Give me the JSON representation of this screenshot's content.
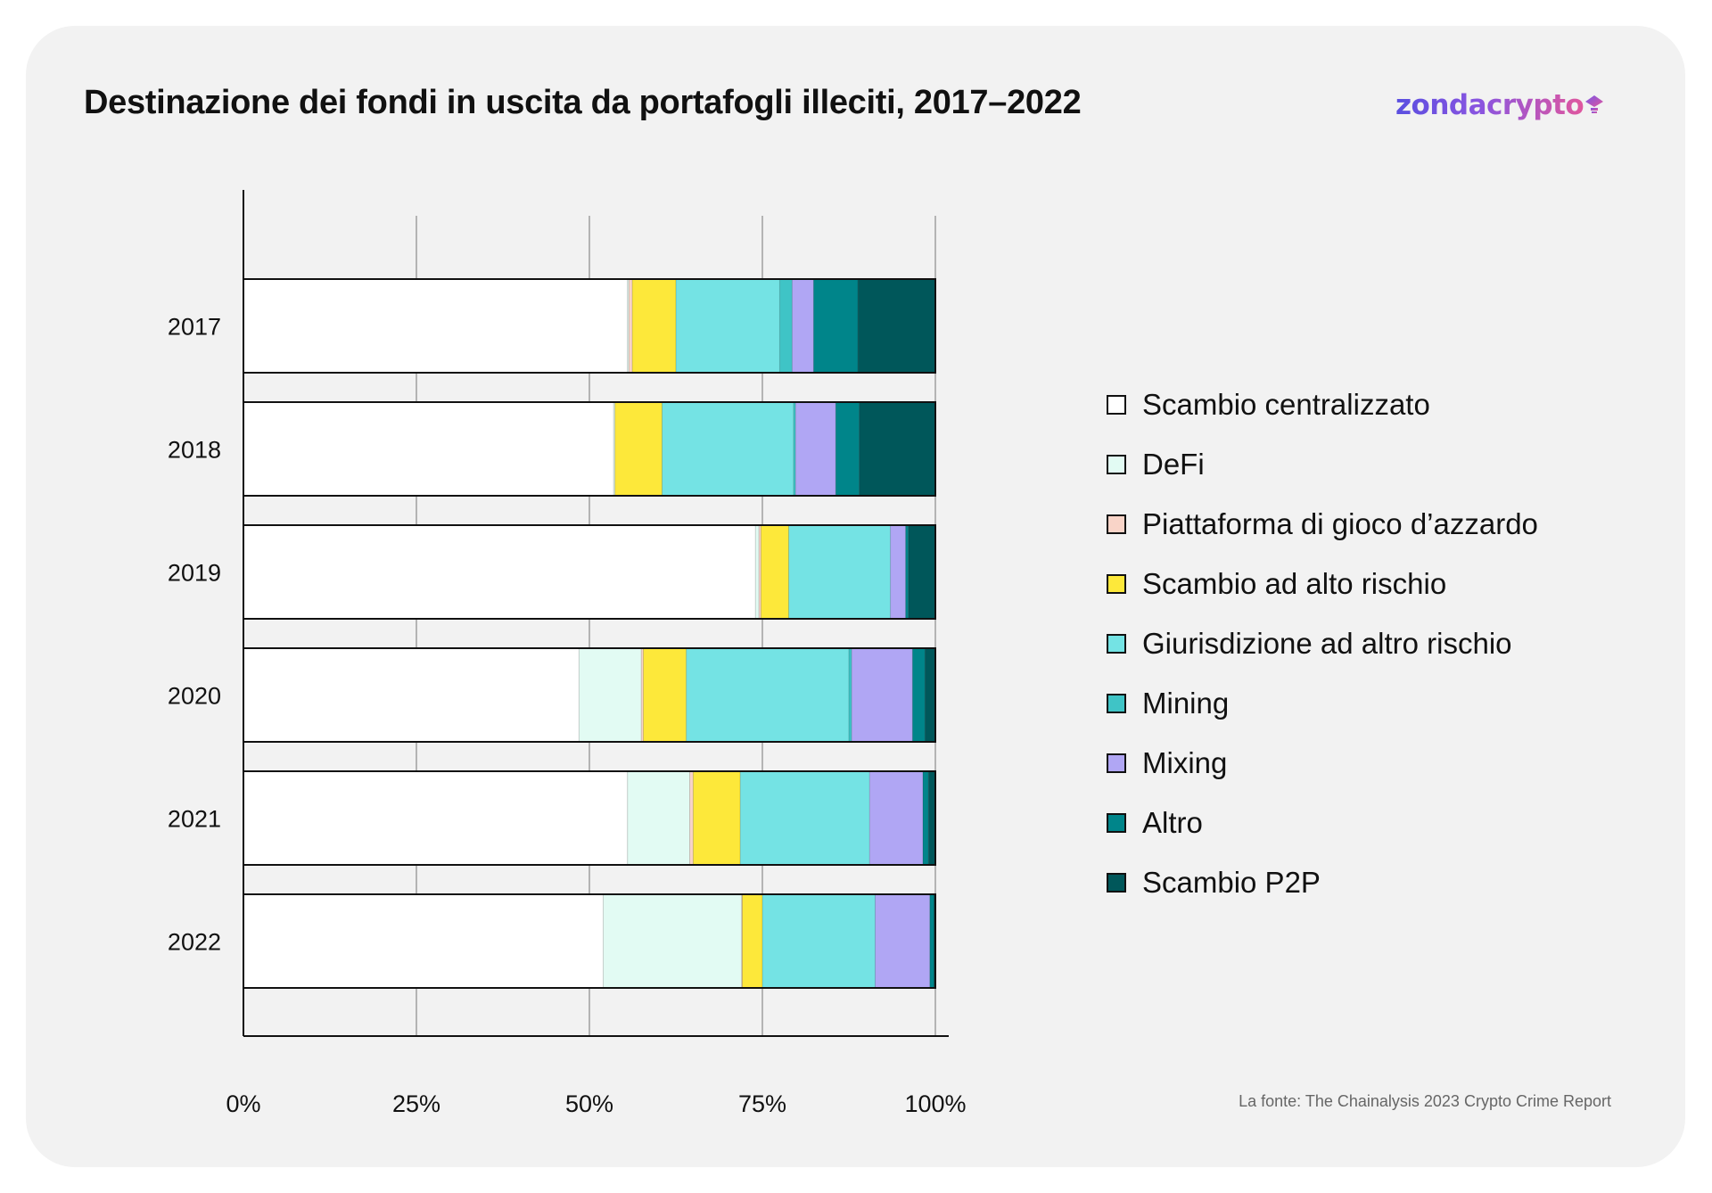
{
  "title": "Destinazione dei fondi in uscita da portafogli illeciti, 2017–2022",
  "brand": {
    "name": "zondacrypto",
    "logo_icon": "zonda-diamond-icon",
    "colors": [
      "#5a4fe0",
      "#e0579e"
    ]
  },
  "source": "La fonte: The Chainalysis 2023 Crypto Crime Report",
  "chart_data": {
    "type": "bar",
    "orientation": "horizontal",
    "stacked": true,
    "title": "Destinazione dei fondi in uscita da portafogli illeciti, 2017–2022",
    "categories": [
      "2017",
      "2018",
      "2019",
      "2020",
      "2021",
      "2022"
    ],
    "x_ticks": [
      "0%",
      "25%",
      "50%",
      "75%",
      "100%"
    ],
    "xlim": [
      0,
      100
    ],
    "grid": "vertical",
    "legend_position": "right",
    "series": [
      {
        "name": "Scambio centralizzato",
        "color": "#ffffff",
        "values": [
          55.5,
          53.5,
          74,
          48.5,
          55.5,
          52
        ]
      },
      {
        "name": "DeFi",
        "color": "#e2fbf3",
        "values": [
          0.2,
          0.2,
          0.5,
          9,
          9,
          20
        ]
      },
      {
        "name": "Piattaforma di gioco d’azzardo",
        "color": "#f9d4c8",
        "values": [
          0.5,
          0,
          0.3,
          0.3,
          0.5,
          0.1
        ]
      },
      {
        "name": "Scambio ad alto rischio",
        "color": "#fde83a",
        "values": [
          6.3,
          6.8,
          4,
          6.2,
          6.8,
          2.9
        ]
      },
      {
        "name": "Giurisdizione ad altro rischio",
        "color": "#74e3e4",
        "values": [
          15,
          19,
          14.7,
          23.5,
          18.7,
          16.3
        ]
      },
      {
        "name": "Mining",
        "color": "#3fc4c6",
        "values": [
          1.8,
          0.3,
          0,
          0.4,
          0,
          0
        ]
      },
      {
        "name": "Mixing",
        "color": "#b0a6f4",
        "values": [
          3.1,
          5.8,
          2.2,
          8.8,
          7.7,
          7.9
        ]
      },
      {
        "name": "Altro",
        "color": "#00858a",
        "values": [
          6.4,
          3.4,
          0.4,
          1.8,
          0.8,
          0.6
        ]
      },
      {
        "name": "Scambio P2P",
        "color": "#00575a",
        "values": [
          11.2,
          11,
          3.9,
          1.5,
          1,
          0.2
        ]
      }
    ]
  }
}
